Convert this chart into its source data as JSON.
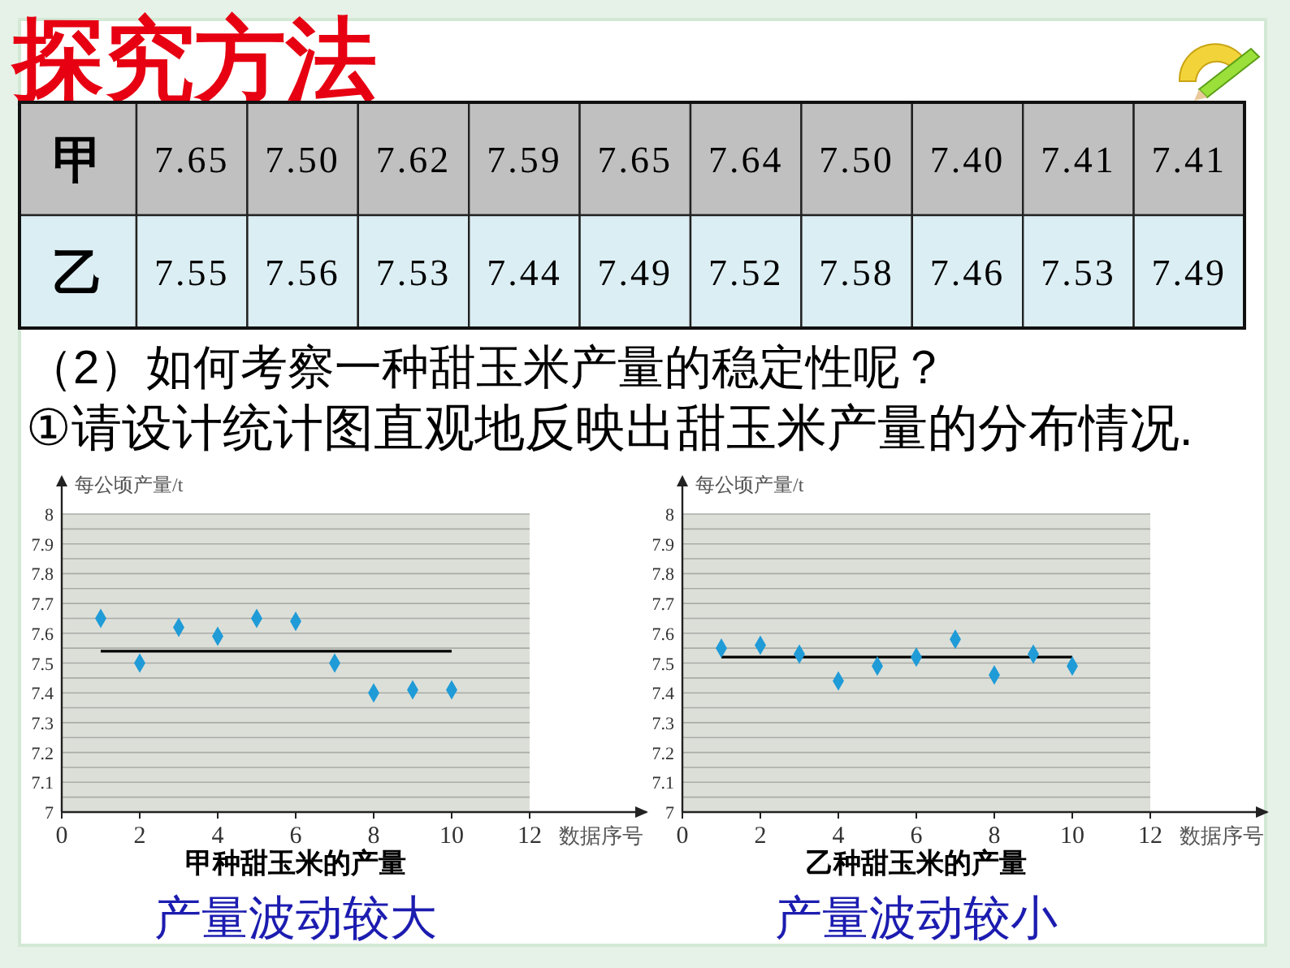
{
  "chart_data": [
    {
      "type": "other",
      "title": "探究方法",
      "annotations": [
        "（2）如何考察一种甜玉米产量的稳定性呢？",
        "①请设计统计图直观地反映出甜玉米产量的分布情况."
      ]
    },
    {
      "type": "heatmap",
      "categories": [
        null,
        null,
        null,
        null,
        null,
        null,
        null,
        null,
        null,
        null
      ],
      "y_categories": [
        "甲",
        "乙"
      ],
      "cells": [
        [
          7.65,
          7.5,
          7.62,
          7.59,
          7.65,
          7.64,
          7.5,
          7.4,
          7.41,
          7.41
        ],
        [
          7.55,
          7.56,
          7.53,
          7.44,
          7.49,
          7.52,
          7.58,
          7.46,
          7.53,
          7.49
        ]
      ],
      "cell_labels": [
        [
          "7.65",
          "7.50",
          "7.62",
          "7.59",
          "7.65",
          "7.64",
          "7.50",
          "7.40",
          "7.41",
          "7.41"
        ],
        [
          "7.55",
          "7.56",
          "7.53",
          "7.44",
          "7.49",
          "7.52",
          "7.58",
          "7.46",
          "7.53",
          "7.49"
        ]
      ]
    },
    {
      "type": "scatter",
      "title": "甲种甜玉米的产量",
      "subtitle": "产量波动较大",
      "xlabel": "数据序号",
      "ylabel": "每公顷产量/t",
      "x": [
        1,
        2,
        3,
        4,
        5,
        6,
        7,
        8,
        9,
        10
      ],
      "series": [
        {
          "type": "scatter",
          "color": "#1f9bd7",
          "values": [
            7.65,
            7.5,
            7.62,
            7.59,
            7.65,
            7.64,
            7.5,
            7.4,
            7.41,
            7.41
          ]
        }
      ],
      "ref_lines": [
        {
          "axis": "y",
          "value": 7.54,
          "color": "#000000"
        }
      ],
      "bands": [
        {
          "axis": "x",
          "from": 0,
          "to": 12,
          "color": "#dcdfd8"
        }
      ],
      "xlim": [
        0,
        15
      ],
      "xticks": [
        0,
        2,
        4,
        6,
        8,
        10,
        12
      ],
      "ylim": [
        7,
        8
      ],
      "yticks": [
        7,
        {
          "value": 7.05,
          "label": null
        },
        7.1,
        {
          "value": 7.15,
          "label": null
        },
        7.2,
        {
          "value": 7.25,
          "label": null
        },
        7.3,
        {
          "value": 7.35,
          "label": null
        },
        7.4,
        {
          "value": 7.45,
          "label": null
        },
        7.5,
        {
          "value": 7.55,
          "label": null
        },
        7.6,
        {
          "value": 7.65,
          "label": null
        },
        7.7,
        {
          "value": 7.75,
          "label": null
        },
        7.8,
        {
          "value": 7.85,
          "label": null
        },
        7.9,
        {
          "value": 7.95,
          "label": null
        },
        8
      ],
      "grid": "y",
      "marker": "diamond"
    },
    {
      "type": "scatter",
      "title": "乙种甜玉米的产量",
      "subtitle": "产量波动较小",
      "xlabel": "数据序号",
      "ylabel": "每公顷产量/t",
      "x": [
        1,
        2,
        3,
        4,
        5,
        6,
        7,
        8,
        9,
        10
      ],
      "series": [
        {
          "type": "scatter",
          "color": "#1f9bd7",
          "values": [
            7.55,
            7.56,
            7.53,
            7.44,
            7.49,
            7.52,
            7.58,
            7.46,
            7.53,
            7.49
          ]
        }
      ],
      "ref_lines": [
        {
          "axis": "y",
          "value": 7.52,
          "color": "#000000"
        }
      ],
      "bands": [
        {
          "axis": "x",
          "from": 0,
          "to": 12,
          "color": "#dcdfd8"
        }
      ],
      "xlim": [
        0,
        15
      ],
      "xticks": [
        0,
        2,
        4,
        6,
        8,
        10,
        12
      ],
      "ylim": [
        7,
        8
      ],
      "yticks": [
        7,
        {
          "value": 7.05,
          "label": null
        },
        7.1,
        {
          "value": 7.15,
          "label": null
        },
        7.2,
        {
          "value": 7.25,
          "label": null
        },
        7.3,
        {
          "value": 7.35,
          "label": null
        },
        7.4,
        {
          "value": 7.45,
          "label": null
        },
        7.5,
        {
          "value": 7.55,
          "label": null
        },
        7.6,
        {
          "value": 7.65,
          "label": null
        },
        7.7,
        {
          "value": 7.75,
          "label": null
        },
        7.8,
        {
          "value": 7.85,
          "label": null
        },
        7.9,
        {
          "value": 7.95,
          "label": null
        },
        8
      ],
      "grid": "y",
      "marker": "diamond"
    }
  ]
}
